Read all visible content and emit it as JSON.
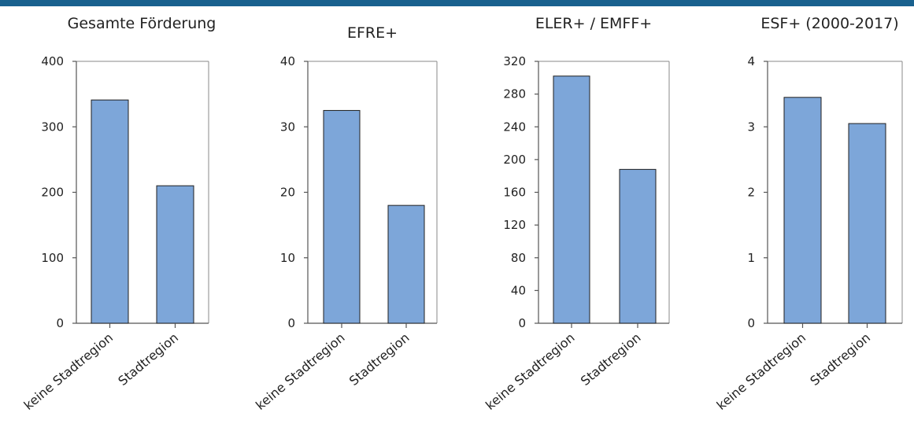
{
  "chart_data": [
    {
      "type": "bar",
      "title": "Gesamte Förderung",
      "categories": [
        "keine Stadtregion",
        "Stadtregion"
      ],
      "values": [
        341,
        210
      ],
      "ylim": [
        0,
        400
      ],
      "yticks": [
        0,
        100,
        200,
        300,
        400
      ],
      "ytick_labels": [
        "0",
        "100",
        "200",
        "300",
        "400"
      ],
      "xlabel": "",
      "ylabel": "",
      "grid": false,
      "legend": "none"
    },
    {
      "type": "bar",
      "title": "EFRE+",
      "categories": [
        "keine Stadtregion",
        "Stadtregion"
      ],
      "values": [
        32.5,
        18
      ],
      "ylim": [
        0,
        40
      ],
      "yticks": [
        0,
        10,
        20,
        30,
        40
      ],
      "ytick_labels": [
        "0",
        "10",
        "20",
        "30",
        "40"
      ],
      "xlabel": "",
      "ylabel": "",
      "grid": false,
      "legend": "none"
    },
    {
      "type": "bar",
      "title": "ELER+ / EMFF+",
      "categories": [
        "keine Stadtregion",
        "Stadtregion"
      ],
      "values": [
        302,
        188
      ],
      "ylim": [
        0,
        320
      ],
      "yticks": [
        0,
        40,
        80,
        120,
        160,
        200,
        240,
        280,
        320
      ],
      "ytick_labels": [
        "0",
        "40",
        "80",
        "120",
        "160",
        "200",
        "240",
        "280",
        "320"
      ],
      "xlabel": "",
      "ylabel": "",
      "grid": false,
      "legend": "none"
    },
    {
      "type": "bar",
      "title": "ESF+ (2000-2017)",
      "categories": [
        "keine Stadtregion",
        "Stadtregion"
      ],
      "values": [
        3.45,
        3.05
      ],
      "ylim": [
        0,
        4
      ],
      "yticks": [
        0,
        1,
        2,
        3,
        4
      ],
      "ytick_labels": [
        "0",
        "1",
        "2",
        "3",
        "4"
      ],
      "xlabel": "",
      "ylabel": "",
      "grid": false,
      "legend": "none"
    }
  ],
  "colors": {
    "bar": "#7da6d9",
    "top_bar": "#19618e"
  }
}
